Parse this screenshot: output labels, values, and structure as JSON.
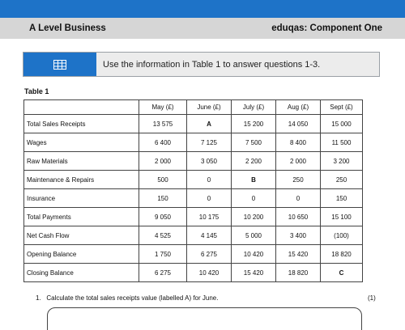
{
  "header": {
    "left_title": "A Level Business",
    "right_title": "eduqas: Component One"
  },
  "instruction": {
    "icon": "table-icon",
    "text": "Use the information in Table 1 to answer questions 1-3."
  },
  "table": {
    "title": "Table 1",
    "columns": [
      "",
      "May (£)",
      "June (£)",
      "July (£)",
      "Aug (£)",
      "Sept (£)"
    ],
    "rows": [
      {
        "label": "Total Sales Receipts",
        "values": [
          "13 575",
          "A",
          "15 200",
          "14 050",
          "15 000"
        ]
      },
      {
        "label": "Wages",
        "values": [
          "6 400",
          "7 125",
          "7 500",
          "8 400",
          "11 500"
        ]
      },
      {
        "label": "Raw Materials",
        "values": [
          "2 000",
          "3 050",
          "2 200",
          "2 000",
          "3 200"
        ]
      },
      {
        "label": "Maintenance & Repairs",
        "values": [
          "500",
          "0",
          "B",
          "250",
          "250"
        ]
      },
      {
        "label": "Insurance",
        "values": [
          "150",
          "0",
          "0",
          "0",
          "150"
        ]
      },
      {
        "label": "Total Payments",
        "values": [
          "9 050",
          "10 175",
          "10 200",
          "10 650",
          "15 100"
        ]
      },
      {
        "label": "Net Cash Flow",
        "values": [
          "4 525",
          "4 145",
          "5 000",
          "3 400",
          "(100)"
        ]
      },
      {
        "label": "Opening Balance",
        "values": [
          "1 750",
          "6 275",
          "10 420",
          "15 420",
          "18 820"
        ]
      },
      {
        "label": "Closing Balance",
        "values": [
          "6 275",
          "10 420",
          "15 420",
          "18 820",
          "C"
        ]
      }
    ]
  },
  "question": {
    "number": "1.",
    "text": "Calculate the total sales receipts value (labelled A) for June.",
    "marks": "(1)"
  }
}
